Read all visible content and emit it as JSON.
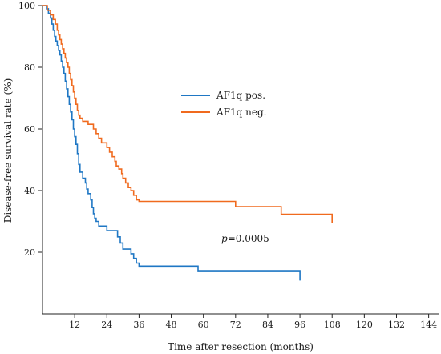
{
  "chart_data": {
    "type": "line",
    "step": true,
    "xlabel": "Time after resection (months)",
    "ylabel": "Disease-free survival rate (%)",
    "xlim": [
      0,
      148
    ],
    "ylim": [
      0,
      100
    ],
    "xticks": [
      12,
      24,
      36,
      48,
      60,
      72,
      84,
      96,
      108,
      120,
      132,
      144
    ],
    "yticks": [
      20,
      40,
      60,
      80,
      100
    ],
    "legend_position": "upper-middle",
    "annotation": {
      "prefix": "p",
      "text": "=0.0005",
      "x": 74,
      "y": 20
    },
    "series": [
      {
        "name": "AF1q pos.",
        "color": "#1f77c4",
        "points": [
          [
            0,
            100
          ],
          [
            1.5,
            99
          ],
          [
            2.2,
            97.5
          ],
          [
            3,
            96
          ],
          [
            3.5,
            94
          ],
          [
            4,
            92
          ],
          [
            4.5,
            90
          ],
          [
            5,
            88.5
          ],
          [
            5.5,
            87
          ],
          [
            6,
            85.5
          ],
          [
            6.5,
            84
          ],
          [
            7,
            82
          ],
          [
            7.5,
            80
          ],
          [
            8,
            78
          ],
          [
            8.5,
            75.5
          ],
          [
            9,
            73
          ],
          [
            9.5,
            70.5
          ],
          [
            10,
            68
          ],
          [
            10.5,
            65.5
          ],
          [
            11,
            63
          ],
          [
            11.5,
            60
          ],
          [
            12,
            57.5
          ],
          [
            12.5,
            55
          ],
          [
            13,
            52
          ],
          [
            13.5,
            48.5
          ],
          [
            14,
            46
          ],
          [
            15,
            44
          ],
          [
            16,
            42.5
          ],
          [
            16.5,
            40.5
          ],
          [
            17,
            39
          ],
          [
            18,
            37
          ],
          [
            18.5,
            34.5
          ],
          [
            19,
            32.5
          ],
          [
            19.5,
            31
          ],
          [
            20,
            30
          ],
          [
            21,
            28.5
          ],
          [
            24,
            27
          ],
          [
            28,
            25
          ],
          [
            29,
            23
          ],
          [
            30,
            21
          ],
          [
            33,
            19.5
          ],
          [
            34,
            18
          ],
          [
            35,
            16.5
          ],
          [
            36,
            15.5
          ],
          [
            58,
            14
          ],
          [
            96,
            14
          ],
          [
            96,
            10.8
          ]
        ]
      },
      {
        "name": "AF1q neg.",
        "color": "#f06a1e",
        "points": [
          [
            0,
            100
          ],
          [
            1.8,
            98.5
          ],
          [
            3,
            97
          ],
          [
            4,
            95.5
          ],
          [
            4.8,
            94
          ],
          [
            5.5,
            92
          ],
          [
            6,
            90.5
          ],
          [
            6.5,
            89
          ],
          [
            7,
            87.5
          ],
          [
            7.5,
            86
          ],
          [
            8,
            84.5
          ],
          [
            8.5,
            83
          ],
          [
            9,
            81.5
          ],
          [
            9.5,
            80
          ],
          [
            10,
            78
          ],
          [
            10.5,
            76
          ],
          [
            11,
            74
          ],
          [
            11.5,
            72
          ],
          [
            12,
            70
          ],
          [
            12.5,
            68
          ],
          [
            13,
            66
          ],
          [
            13.5,
            64.5
          ],
          [
            14,
            63.5
          ],
          [
            15,
            62.5
          ],
          [
            17,
            61.5
          ],
          [
            19,
            60
          ],
          [
            20,
            58.5
          ],
          [
            21,
            57
          ],
          [
            22,
            55.5
          ],
          [
            24,
            54
          ],
          [
            25,
            52.5
          ],
          [
            26,
            51
          ],
          [
            27,
            49.5
          ],
          [
            27.5,
            48
          ],
          [
            28.5,
            47
          ],
          [
            29.5,
            45.5
          ],
          [
            30,
            44
          ],
          [
            31,
            42.5
          ],
          [
            32,
            41
          ],
          [
            33,
            40
          ],
          [
            34,
            38.5
          ],
          [
            35,
            37
          ],
          [
            36,
            36.5
          ],
          [
            72,
            34.8
          ],
          [
            89,
            32.3
          ],
          [
            108,
            32.3
          ],
          [
            108,
            29.5
          ]
        ]
      }
    ]
  }
}
